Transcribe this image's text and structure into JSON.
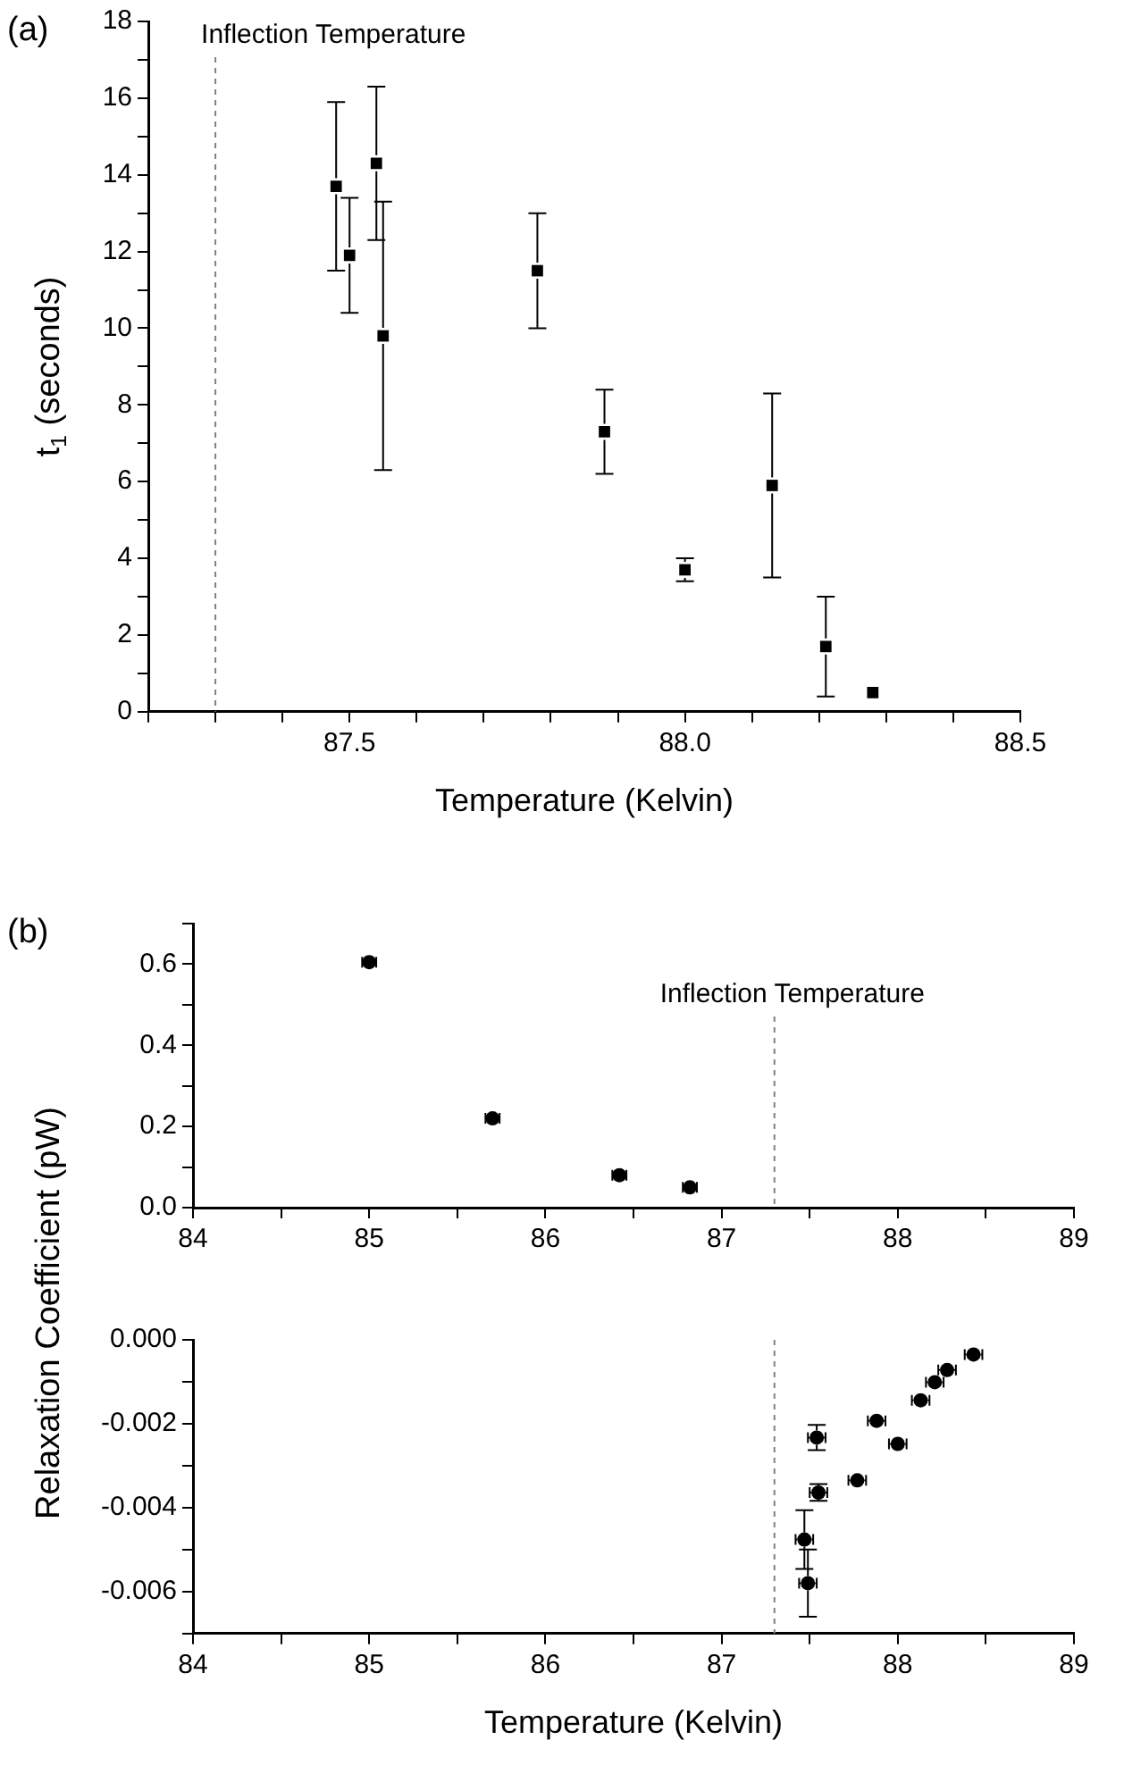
{
  "chart_data": [
    {
      "type": "scatter",
      "annotations": [
        "(a)"
      ],
      "xlabel": "Temperature (Kelvin)",
      "ylabel": "t$_{1}$ (seconds)",
      "marker": "square",
      "x": [
        87.48,
        87.5,
        87.54,
        87.55,
        87.78,
        87.88,
        88.0,
        88.13,
        88.21,
        88.28
      ],
      "series": [
        {
          "color": "#000000",
          "values": [
            13.7,
            11.9,
            14.3,
            9.8,
            11.5,
            7.3,
            3.7,
            5.9,
            1.7,
            0.5
          ],
          "errors": [
            2.2,
            1.5,
            2.0,
            3.5,
            1.5,
            1.1,
            0.3,
            [
              3.5,
              8.3
            ],
            1.3,
            null
          ]
        }
      ],
      "xlim": [
        87.2,
        88.5
      ],
      "xticks": [
        {
          "value": 87.2,
          "label": null
        },
        {
          "value": 87.3,
          "label": null
        },
        {
          "value": 87.4,
          "label": null
        },
        87.5,
        {
          "value": 87.6,
          "label": null
        },
        {
          "value": 87.7,
          "label": null
        },
        {
          "value": 87.8,
          "label": null
        },
        {
          "value": 87.9,
          "label": null
        },
        {
          "value": 88,
          "label": "88.0"
        },
        {
          "value": 88.1,
          "label": null
        },
        {
          "value": 88.2,
          "label": null
        },
        {
          "value": 88.3,
          "label": null
        },
        {
          "value": 88.4,
          "label": null
        },
        88.5
      ],
      "ylim": [
        0,
        18
      ],
      "yticks": [
        0,
        {
          "value": 1,
          "label": null
        },
        2,
        {
          "value": 3,
          "label": null
        },
        4,
        {
          "value": 5,
          "label": null
        },
        6,
        {
          "value": 7,
          "label": null
        },
        8,
        {
          "value": 9,
          "label": null
        },
        10,
        {
          "value": 11,
          "label": null
        },
        12,
        {
          "value": 13,
          "label": null
        },
        14,
        {
          "value": 15,
          "label": null
        },
        16,
        {
          "value": 17,
          "label": null
        },
        18
      ],
      "ref_lines": [
        {
          "axis": "x",
          "value": 87.3,
          "label": "Inflection Temperature",
          "color": "#808080",
          "line_style": "dashed"
        }
      ]
    },
    {
      "type": "scatter",
      "annotations": [
        "(b)"
      ],
      "ylabel": "Relaxation Coefficient (pW)",
      "marker": "circle",
      "x": [
        85.0,
        85.7,
        86.42,
        86.82
      ],
      "series": [
        {
          "color": "#000000",
          "values": [
            0.605,
            0.22,
            0.08,
            0.05
          ],
          "xerrors": [
            0.04,
            0.04,
            0.04,
            0.04
          ]
        }
      ],
      "xlim": [
        84,
        89
      ],
      "xticks": [
        84,
        {
          "value": 84.5,
          "label": null
        },
        85,
        {
          "value": 85.5,
          "label": null
        },
        86,
        {
          "value": 86.5,
          "label": null
        },
        87,
        {
          "value": 87.5,
          "label": null
        },
        88,
        {
          "value": 88.5,
          "label": null
        },
        89
      ],
      "ylim": [
        0,
        0.7
      ],
      "yticks": [
        {
          "value": 0,
          "label": "0.0"
        },
        {
          "value": 0.1,
          "label": null
        },
        {
          "value": 0.2,
          "label": "0.2"
        },
        {
          "value": 0.3,
          "label": null
        },
        {
          "value": 0.4,
          "label": "0.4"
        },
        {
          "value": 0.5,
          "label": null
        },
        {
          "value": 0.6,
          "label": "0.6"
        },
        {
          "value": 0.7,
          "label": null
        }
      ],
      "ref_lines": [
        {
          "axis": "x",
          "value": 87.3,
          "label": "Inflection Temperature",
          "color": "#808080",
          "line_style": "dashed"
        }
      ]
    },
    {
      "type": "scatter",
      "xlabel": "Temperature (Kelvin)",
      "marker": "circle",
      "x": [
        88.43,
        88.28,
        88.21,
        88.13,
        87.88,
        88.0,
        87.54,
        87.77,
        87.55,
        87.47,
        87.49
      ],
      "series": [
        {
          "color": "#000000",
          "values": [
            -0.00035,
            -0.00072,
            -0.00101,
            -0.00144,
            -0.00193,
            -0.00248,
            -0.00233,
            -0.00335,
            -0.00364,
            -0.00476,
            -0.0058
          ],
          "errors": [
            null,
            null,
            null,
            null,
            null,
            null,
            0.0003,
            null,
            0.0002,
            0.0007,
            0.0008
          ],
          "xerrors": [
            0.05,
            0.05,
            0.05,
            0.05,
            0.05,
            0.05,
            0.05,
            0.05,
            0.05,
            0.05,
            0.05
          ]
        }
      ],
      "xlim": [
        84,
        89
      ],
      "xticks": [
        84,
        {
          "value": 84.5,
          "label": null
        },
        85,
        {
          "value": 85.5,
          "label": null
        },
        86,
        {
          "value": 86.5,
          "label": null
        },
        87,
        {
          "value": 87.5,
          "label": null
        },
        88,
        {
          "value": 88.5,
          "label": null
        },
        89
      ],
      "ylim": [
        -0.007,
        0
      ],
      "yticks": [
        {
          "value": -0.007,
          "label": null
        },
        {
          "value": -0.006,
          "label": "-0.006"
        },
        {
          "value": -0.005,
          "label": null
        },
        {
          "value": -0.004,
          "label": "-0.004"
        },
        {
          "value": -0.003,
          "label": null
        },
        {
          "value": -0.002,
          "label": "-0.002"
        },
        {
          "value": -0.001,
          "label": null
        },
        {
          "value": 0,
          "label": "0.000"
        }
      ],
      "ref_lines": [
        {
          "axis": "x",
          "value": 87.3,
          "color": "#808080",
          "line_style": "dashed"
        }
      ]
    }
  ]
}
